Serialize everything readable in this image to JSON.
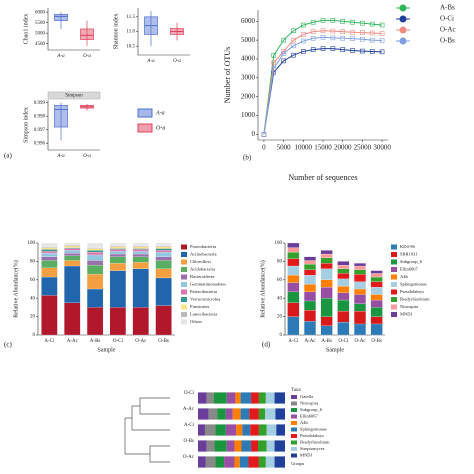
{
  "panel_labels": [
    "(a)",
    "(b)",
    "(c)",
    "(d)"
  ],
  "panel_a_legend": [
    {
      "name": "A-a",
      "color": "#4f6fd0"
    },
    {
      "name": "O-a",
      "color": "#e0405a"
    }
  ],
  "chart_data": [
    {
      "type": "box",
      "ylabel": "Chao1 index",
      "categories": [
        "A-a",
        "O-a"
      ],
      "colors": [
        "#4f6fd0",
        "#e0405a"
      ],
      "boxes": [
        {
          "min": 5200,
          "q1": 5600,
          "median": 5800,
          "q3": 5900,
          "max": 6000
        },
        {
          "min": 4400,
          "q1": 4700,
          "median": 4900,
          "q3": 5200,
          "max": 5600
        }
      ],
      "ylim": [
        4200,
        6200
      ],
      "yticks": [
        4500,
        5000,
        5500,
        6000
      ]
    },
    {
      "type": "box",
      "ylabel": "Shannon index",
      "categories": [
        "A-a",
        "O-a"
      ],
      "colors": [
        "#4f6fd0",
        "#e0405a"
      ],
      "boxes": [
        {
          "min": 10.5,
          "q1": 10.9,
          "median": 11.2,
          "q3": 11.5,
          "max": 11.7
        },
        {
          "min": 10.7,
          "q1": 10.9,
          "median": 11.0,
          "q3": 11.1,
          "max": 11.3
        }
      ],
      "ylim": [
        10.2,
        11.8
      ],
      "yticks": [
        10.5,
        {
          "value": 11,
          "label": "11.0"
        },
        11.5
      ]
    },
    {
      "type": "box",
      "title": "Simpson",
      "ylabel": "Simpson index",
      "categories": [
        "A-a",
        "O-a"
      ],
      "colors": [
        "#4f6fd0",
        "#e0405a"
      ],
      "boxes": [
        {
          "min": 0.9962,
          "q1": 0.9972,
          "median": 0.9985,
          "q3": 0.9988,
          "max": 0.999
        },
        {
          "min": 0.9984,
          "q1": 0.9986,
          "median": 0.9987,
          "q3": 0.9988,
          "max": 0.9989
        }
      ],
      "ylim": [
        0.9955,
        0.9992
      ],
      "yticks": [
        0.996,
        0.997,
        0.998,
        0.999
      ]
    },
    {
      "type": "line",
      "xlabel": "Number of sequences",
      "ylabel": "Number of OTUs",
      "x": [
        0,
        2500,
        5000,
        7500,
        10000,
        12500,
        15000,
        17500,
        20000,
        22500,
        25000,
        27500,
        30000
      ],
      "series": [
        {
          "name": "A-Bs",
          "color": "#2fb55a",
          "values": [
            0,
            4200,
            5000,
            5500,
            5800,
            5950,
            6050,
            6050,
            6000,
            5950,
            5900,
            5850,
            5800
          ]
        },
        {
          "name": "O-Ci",
          "color": "#1f3f9a",
          "values": [
            0,
            3300,
            3900,
            4200,
            4400,
            4500,
            4550,
            4550,
            4500,
            4450,
            4420,
            4400,
            4380
          ]
        },
        {
          "name": "O-Ac",
          "color": "#f08a80",
          "values": [
            0,
            3800,
            4400,
            5000,
            5300,
            5450,
            5500,
            5480,
            5450,
            5420,
            5400,
            5380,
            5350
          ]
        },
        {
          "name": "O-Bs",
          "color": "#7f9fe0",
          "values": [
            0,
            3500,
            4300,
            4700,
            4950,
            5100,
            5150,
            5120,
            5100,
            5080,
            5050,
            5000,
            4980
          ]
        }
      ],
      "xlim": [
        -1500,
        31500
      ],
      "xticks": [
        0,
        5000,
        10000,
        15000,
        20000,
        25000,
        30000
      ],
      "ylim": [
        -300,
        6600
      ],
      "yticks": [
        0,
        1000,
        2000,
        3000,
        4000,
        5000,
        6000
      ]
    },
    {
      "type": "stack",
      "xlabel": "Sample",
      "ylabel": "Relative Abundance(%)",
      "categories": [
        "A-Ci",
        "A-Ac",
        "A-Bs",
        "O-Ci",
        "O-Ac",
        "O-Bs"
      ],
      "series": [
        {
          "name": "Proteobacteria",
          "color": "#b2182b",
          "values": [
            43,
            35,
            30,
            30,
            30,
            32
          ]
        },
        {
          "name": "Actinobacteria",
          "color": "#2166ac",
          "values": [
            20,
            40,
            20,
            40,
            42,
            30
          ]
        },
        {
          "name": "Chloroflexi",
          "color": "#f4a040",
          "values": [
            10,
            6,
            16,
            8,
            7,
            10
          ]
        },
        {
          "name": "Acidobacteria",
          "color": "#5aae61",
          "values": [
            8,
            5,
            10,
            7,
            6,
            9
          ]
        },
        {
          "name": "Bacteroidetes",
          "color": "#9970ab",
          "values": [
            4,
            3,
            5,
            3,
            3,
            4
          ]
        },
        {
          "name": "Gemmatimonadetes",
          "color": "#92c5de",
          "values": [
            4,
            3,
            6,
            3,
            3,
            5
          ]
        },
        {
          "name": "Patescibacteria",
          "color": "#de77ae",
          "values": [
            2,
            2,
            3,
            2,
            2,
            2
          ]
        },
        {
          "name": "Verrucomicrobia",
          "color": "#35978f",
          "values": [
            2,
            1,
            2,
            1,
            1,
            2
          ]
        },
        {
          "name": "Firmicutes",
          "color": "#fee08b",
          "values": [
            2,
            2,
            2,
            2,
            2,
            2
          ]
        },
        {
          "name": "Latescibacteria",
          "color": "#bbbbbb",
          "values": [
            1,
            1,
            1,
            1,
            1,
            1
          ]
        },
        {
          "name": "Others",
          "color": "#e6e6e6",
          "values": [
            4,
            2,
            5,
            3,
            3,
            3
          ]
        }
      ],
      "ylim": [
        0,
        100
      ],
      "yticks": [
        0,
        20,
        40,
        60,
        80,
        100
      ]
    },
    {
      "type": "stack",
      "xlabel": "Sample",
      "ylabel": "Relative Abundance(%)",
      "categories": [
        "A-Ci",
        "A-Ac",
        "A-Bs",
        "O-Ci",
        "O-Ac",
        "O-Bs"
      ],
      "series": [
        {
          "name": "KD4-96",
          "color": "#2c7bb6",
          "values": [
            20,
            15,
            10,
            14,
            12,
            12
          ]
        },
        {
          "name": "SBR1031",
          "color": "#d7191c",
          "values": [
            15,
            12,
            10,
            12,
            14,
            8
          ]
        },
        {
          "name": "Subgroup_6",
          "color": "#1a9641",
          "values": [
            12,
            10,
            20,
            12,
            8,
            10
          ]
        },
        {
          "name": "Ellin6067",
          "color": "#984ea3",
          "values": [
            10,
            10,
            12,
            8,
            10,
            8
          ]
        },
        {
          "name": "A4b",
          "color": "#ff7f00",
          "values": [
            8,
            8,
            8,
            7,
            6,
            6
          ]
        },
        {
          "name": "Sphingomonas",
          "color": "#a6cee3",
          "values": [
            10,
            10,
            12,
            8,
            8,
            8
          ]
        },
        {
          "name": "Pseudolabrys",
          "color": "#e31a1c",
          "values": [
            8,
            6,
            6,
            6,
            8,
            6
          ]
        },
        {
          "name": "Bradyrhizobium",
          "color": "#33a02c",
          "values": [
            7,
            6,
            6,
            5,
            5,
            5
          ]
        },
        {
          "name": "Nitrospira",
          "color": "#fb9a99",
          "values": [
            5,
            4,
            4,
            4,
            4,
            4
          ]
        },
        {
          "name": "MND1",
          "color": "#6a3d9a",
          "values": [
            5,
            4,
            4,
            4,
            3,
            3
          ]
        }
      ],
      "ylim": [
        0,
        100
      ],
      "yticks": [
        0,
        20,
        40,
        60,
        80,
        100
      ]
    },
    {
      "type": "hstack",
      "legend_title": "Taxa",
      "footer": "Groups",
      "categories": [
        "O-Ci",
        "A-Ac",
        "A-Ci",
        "O-Bs",
        "O-Ac"
      ],
      "series": [
        {
          "name": "Gaiella",
          "color": "#6a3d9a",
          "values": [
            10,
            12,
            8,
            10,
            9
          ]
        },
        {
          "name": "Nitrospira",
          "color": "#888888",
          "values": [
            8,
            10,
            12,
            9,
            11
          ]
        },
        {
          "name": "Subgroup_6",
          "color": "#1a9641",
          "values": [
            15,
            10,
            12,
            14,
            10
          ]
        },
        {
          "name": "Ellin6067",
          "color": "#984ea3",
          "values": [
            10,
            8,
            12,
            9,
            12
          ]
        },
        {
          "name": "A4b",
          "color": "#ff7f00",
          "values": [
            6,
            9,
            7,
            8,
            6
          ]
        },
        {
          "name": "Sphingomonas",
          "color": "#2c7bb6",
          "values": [
            12,
            10,
            9,
            11,
            10
          ]
        },
        {
          "name": "Pseudolabrys",
          "color": "#e31a1c",
          "values": [
            9,
            11,
            10,
            8,
            12
          ]
        },
        {
          "name": "Bradyrhizobium",
          "color": "#33a02c",
          "values": [
            8,
            7,
            9,
            10,
            8
          ]
        },
        {
          "name": "Streptomyces",
          "color": "#a6cee3",
          "values": [
            10,
            12,
            11,
            9,
            10
          ]
        },
        {
          "name": "MND1",
          "color": "#1f3f9a",
          "values": [
            12,
            11,
            10,
            12,
            12
          ]
        }
      ],
      "xlim": [
        0,
        100
      ]
    }
  ]
}
